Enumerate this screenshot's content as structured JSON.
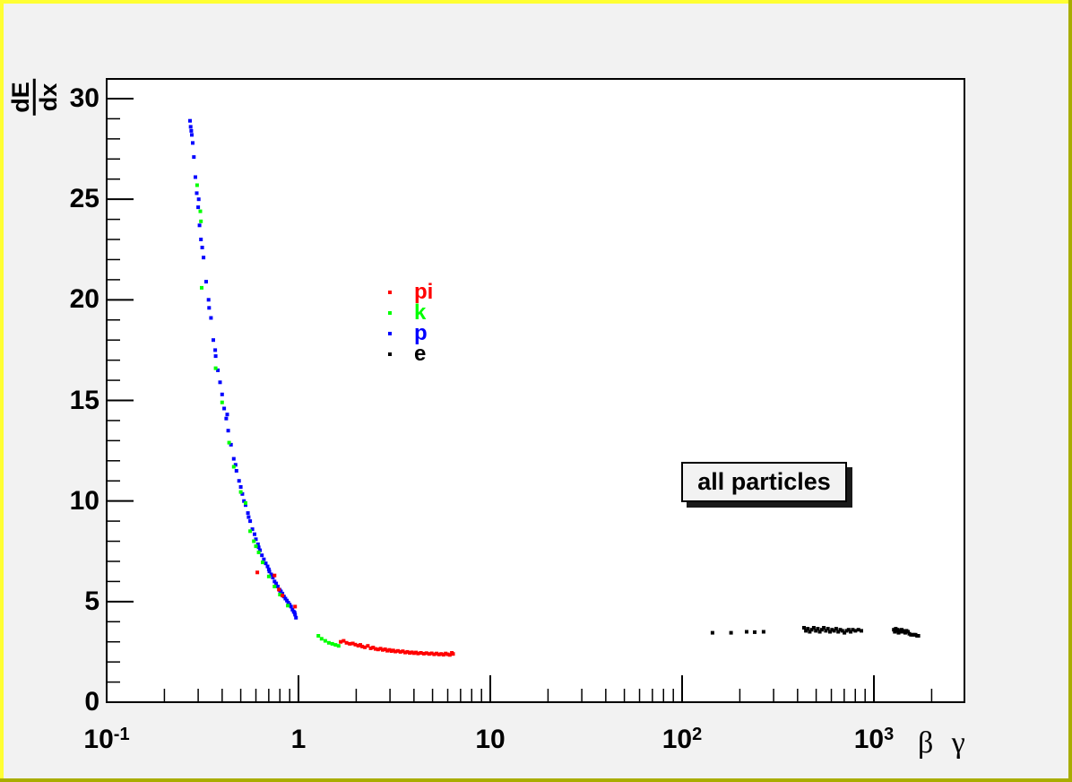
{
  "canvas_colors": {
    "background": "#f2f2f2",
    "plot_background": "#ffffff",
    "border_light": "#ffff33",
    "border_dark": "#a9ad00",
    "frame_line": "#000000",
    "pave_shadow": "#1a1a1a"
  },
  "title_box": {
    "text": "all particles"
  },
  "axes": {
    "x": {
      "label": "β γ",
      "scale": "log",
      "min": 0.1,
      "max": 2966,
      "ticks": [
        {
          "value": 0.1,
          "base": "10",
          "exp": "-1"
        },
        {
          "value": 1,
          "base": "1",
          "exp": ""
        },
        {
          "value": 10,
          "base": "10",
          "exp": ""
        },
        {
          "value": 100,
          "base": "10",
          "exp": "2"
        },
        {
          "value": 1000,
          "base": "10",
          "exp": "3"
        }
      ]
    },
    "y": {
      "label_num": "dE",
      "label_den": "dx",
      "min": 0,
      "max": 31,
      "major_ticks": [
        0,
        5,
        10,
        15,
        20,
        25,
        30
      ],
      "minor_step": 1
    }
  },
  "legend": {
    "items": [
      {
        "label": "pi",
        "color": "#ff0000"
      },
      {
        "label": "k",
        "color": "#00ff00"
      },
      {
        "label": "p",
        "color": "#0000ff"
      },
      {
        "label": "e",
        "color": "#000000"
      }
    ]
  },
  "chart_data": {
    "type": "scatter",
    "title": "all particles",
    "xlabel": "β γ",
    "ylabel": "dE/dx",
    "xscale": "log",
    "xlim": [
      0.1,
      2966
    ],
    "ylim": [
      0,
      31
    ],
    "grid": false,
    "legend_position": "inside upper-left-of-center",
    "marker": "square-4px",
    "series": [
      {
        "name": "p",
        "color": "#0000ff",
        "points": [
          [
            0.272,
            28.9
          ],
          [
            0.274,
            28.6
          ],
          [
            0.276,
            28.4
          ],
          [
            0.278,
            28.2
          ],
          [
            0.281,
            27.8
          ],
          [
            0.285,
            27.1
          ],
          [
            0.29,
            26.1
          ],
          [
            0.295,
            25.3
          ],
          [
            0.3,
            24.6
          ],
          [
            0.302,
            25.0
          ],
          [
            0.305,
            23.7
          ],
          [
            0.31,
            23.0
          ],
          [
            0.315,
            22.6
          ],
          [
            0.32,
            22.1
          ],
          [
            0.33,
            20.9
          ],
          [
            0.34,
            20.0
          ],
          [
            0.342,
            19.6
          ],
          [
            0.35,
            19.1
          ],
          [
            0.36,
            18.0
          ],
          [
            0.368,
            17.5
          ],
          [
            0.37,
            17.2
          ],
          [
            0.38,
            16.5
          ],
          [
            0.39,
            15.9
          ],
          [
            0.4,
            15.3
          ],
          [
            0.41,
            14.6
          ],
          [
            0.42,
            14.1
          ],
          [
            0.425,
            14.3
          ],
          [
            0.43,
            13.5
          ],
          [
            0.445,
            12.8
          ],
          [
            0.46,
            12.1
          ],
          [
            0.47,
            11.8
          ],
          [
            0.475,
            11.5
          ],
          [
            0.49,
            11.0
          ],
          [
            0.5,
            10.7
          ],
          [
            0.51,
            10.35
          ],
          [
            0.52,
            10.0
          ],
          [
            0.53,
            9.8
          ],
          [
            0.545,
            9.4
          ],
          [
            0.55,
            9.2
          ],
          [
            0.56,
            9.0
          ],
          [
            0.575,
            8.6
          ],
          [
            0.59,
            8.35
          ],
          [
            0.6,
            8.1
          ],
          [
            0.615,
            7.85
          ],
          [
            0.62,
            7.7
          ],
          [
            0.63,
            7.55
          ],
          [
            0.645,
            7.3
          ],
          [
            0.66,
            7.1
          ],
          [
            0.675,
            6.9
          ],
          [
            0.69,
            6.75
          ],
          [
            0.7,
            6.6
          ],
          [
            0.705,
            6.5
          ],
          [
            0.72,
            6.35
          ],
          [
            0.735,
            6.2
          ],
          [
            0.75,
            6.0
          ],
          [
            0.765,
            5.9
          ],
          [
            0.78,
            5.75
          ],
          [
            0.795,
            5.6
          ],
          [
            0.8,
            5.55
          ],
          [
            0.81,
            5.5
          ],
          [
            0.825,
            5.4
          ],
          [
            0.84,
            5.25
          ],
          [
            0.855,
            5.15
          ],
          [
            0.87,
            5.05
          ],
          [
            0.885,
            4.95
          ],
          [
            0.9,
            4.85
          ],
          [
            0.915,
            4.75
          ],
          [
            0.93,
            4.6
          ],
          [
            0.945,
            4.5
          ],
          [
            0.955,
            4.45
          ],
          [
            0.96,
            4.35
          ],
          [
            0.97,
            4.2
          ]
        ]
      },
      {
        "name": "k",
        "color": "#00ff00",
        "points": [
          [
            0.296,
            25.7
          ],
          [
            0.308,
            24.4
          ],
          [
            0.31,
            23.9
          ],
          [
            0.313,
            20.6
          ],
          [
            0.37,
            16.6
          ],
          [
            0.4,
            14.9
          ],
          [
            0.435,
            12.9
          ],
          [
            0.46,
            11.7
          ],
          [
            0.5,
            10.45
          ],
          [
            0.53,
            9.9
          ],
          [
            0.56,
            8.5
          ],
          [
            0.585,
            8.0
          ],
          [
            0.6,
            7.75
          ],
          [
            0.62,
            7.45
          ],
          [
            0.65,
            6.95
          ],
          [
            0.7,
            6.25
          ],
          [
            0.75,
            5.75
          ],
          [
            0.8,
            5.35
          ],
          [
            0.88,
            4.8
          ],
          [
            1.27,
            3.3
          ],
          [
            1.32,
            3.15
          ],
          [
            1.38,
            3.05
          ],
          [
            1.44,
            2.95
          ],
          [
            1.5,
            2.9
          ],
          [
            1.56,
            2.85
          ],
          [
            1.62,
            2.8
          ]
        ]
      },
      {
        "name": "pi",
        "color": "#ff0000",
        "points": [
          [
            0.61,
            6.45
          ],
          [
            0.75,
            6.3
          ],
          [
            0.79,
            5.6
          ],
          [
            0.825,
            5.3
          ],
          [
            0.96,
            4.75
          ],
          [
            1.66,
            3.0
          ],
          [
            1.72,
            3.05
          ],
          [
            1.78,
            2.95
          ],
          [
            1.85,
            2.9
          ],
          [
            1.92,
            2.92
          ],
          [
            1.98,
            2.86
          ],
          [
            2.05,
            2.81
          ],
          [
            2.1,
            2.85
          ],
          [
            2.15,
            2.77
          ],
          [
            2.22,
            2.73
          ],
          [
            2.3,
            2.8
          ],
          [
            2.38,
            2.68
          ],
          [
            2.45,
            2.72
          ],
          [
            2.52,
            2.65
          ],
          [
            2.6,
            2.62
          ],
          [
            2.68,
            2.66
          ],
          [
            2.75,
            2.6
          ],
          [
            2.83,
            2.63
          ],
          [
            2.9,
            2.56
          ],
          [
            2.98,
            2.6
          ],
          [
            3.05,
            2.54
          ],
          [
            3.12,
            2.57
          ],
          [
            3.2,
            2.52
          ],
          [
            3.3,
            2.55
          ],
          [
            3.4,
            2.5
          ],
          [
            3.5,
            2.53
          ],
          [
            3.6,
            2.47
          ],
          [
            3.7,
            2.5
          ],
          [
            3.8,
            2.45
          ],
          [
            3.9,
            2.48
          ],
          [
            4.0,
            2.44
          ],
          [
            4.1,
            2.47
          ],
          [
            4.2,
            2.42
          ],
          [
            4.35,
            2.45
          ],
          [
            4.5,
            2.41
          ],
          [
            4.65,
            2.44
          ],
          [
            4.8,
            2.4
          ],
          [
            4.95,
            2.43
          ],
          [
            5.1,
            2.38
          ],
          [
            5.25,
            2.42
          ],
          [
            5.4,
            2.37
          ],
          [
            5.55,
            2.4
          ],
          [
            5.7,
            2.36
          ],
          [
            5.85,
            2.42
          ],
          [
            6.0,
            2.38
          ],
          [
            6.15,
            2.35
          ],
          [
            6.3,
            2.45
          ],
          [
            6.4,
            2.4
          ]
        ]
      },
      {
        "name": "e",
        "color": "#000000",
        "points": [
          [
            144,
            3.45
          ],
          [
            180,
            3.45
          ],
          [
            217,
            3.5
          ],
          [
            239,
            3.48
          ],
          [
            266,
            3.5
          ],
          [
            432,
            3.7
          ],
          [
            442,
            3.55
          ],
          [
            452,
            3.65
          ],
          [
            463,
            3.5
          ],
          [
            474,
            3.6
          ],
          [
            486,
            3.7
          ],
          [
            498,
            3.55
          ],
          [
            510,
            3.65
          ],
          [
            522,
            3.5
          ],
          [
            535,
            3.6
          ],
          [
            548,
            3.7
          ],
          [
            562,
            3.55
          ],
          [
            576,
            3.65
          ],
          [
            590,
            3.5
          ],
          [
            605,
            3.6
          ],
          [
            620,
            3.55
          ],
          [
            636,
            3.65
          ],
          [
            652,
            3.5
          ],
          [
            668,
            3.6
          ],
          [
            685,
            3.55
          ],
          [
            702,
            3.45
          ],
          [
            720,
            3.55
          ],
          [
            738,
            3.6
          ],
          [
            757,
            3.5
          ],
          [
            776,
            3.6
          ],
          [
            800,
            3.55
          ],
          [
            830,
            3.6
          ],
          [
            860,
            3.55
          ],
          [
            1270,
            3.6
          ],
          [
            1285,
            3.5
          ],
          [
            1300,
            3.65
          ],
          [
            1315,
            3.55
          ],
          [
            1330,
            3.6
          ],
          [
            1345,
            3.45
          ],
          [
            1360,
            3.55
          ],
          [
            1378,
            3.5
          ],
          [
            1395,
            3.6
          ],
          [
            1415,
            3.55
          ],
          [
            1435,
            3.5
          ],
          [
            1455,
            3.45
          ],
          [
            1480,
            3.55
          ],
          [
            1505,
            3.5
          ],
          [
            1530,
            3.4
          ],
          [
            1560,
            3.35
          ],
          [
            1590,
            3.35
          ],
          [
            1620,
            3.35
          ],
          [
            1650,
            3.35
          ],
          [
            1680,
            3.3
          ],
          [
            1705,
            3.3
          ]
        ]
      }
    ]
  }
}
